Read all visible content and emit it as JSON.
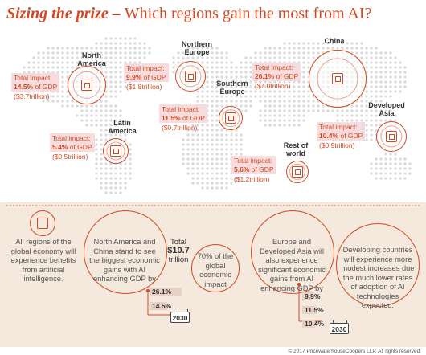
{
  "title": {
    "bold": "Sizing the prize",
    "dash": " – ",
    "rest": "Which regions gain the most from AI?"
  },
  "total_impact_label": "Total impact:",
  "regions": [
    {
      "name": "North America",
      "pct": "14.5%",
      "suffix": " of GDP",
      "amount": "($3.7trillion)"
    },
    {
      "name": "Northern Europe",
      "pct": "9.9%",
      "suffix": " of GDP",
      "amount": "($1.8trillion)"
    },
    {
      "name": "Southern Europe",
      "pct": "11.5%",
      "suffix": " of GDP",
      "amount": "($0.7trillion)"
    },
    {
      "name": "China",
      "pct": "26.1%",
      "suffix": " of GDP",
      "amount": "($7.0trillion)"
    },
    {
      "name": "Latin America",
      "pct": "5.4%",
      "suffix": " of GDP",
      "amount": "($0.5trillion)"
    },
    {
      "name": "Developed Asia",
      "pct": "10.4%",
      "suffix": " of GDP",
      "amount": "($0.9trillion)"
    },
    {
      "name": "Rest of world",
      "pct": "5.6%",
      "suffix": " of GDP",
      "amount": "($1.2trillion)"
    }
  ],
  "summary": {
    "all_regions": "All regions of the global economy will experience benefits from artificial intelligence.",
    "na_china": "North America and China stand to see the biggest economic gains with AI enhancing GDP by",
    "total_prefix": "Total",
    "total_value": "$10.7",
    "total_suffix": "trillion",
    "share": "70% of the global economic impact",
    "europe_asia": "Europe and Developed Asia will also experience significant economic gains from AI enhancing GDP by",
    "developing": "Developing countries will experience more modest increases due the much lower rates of adoption of AI technologies expected."
  },
  "bars_left": [
    {
      "label": "26.1%",
      "value": 26.1
    },
    {
      "label": "14.5%",
      "value": 14.5
    }
  ],
  "bars_right": [
    {
      "label": "9.9%",
      "value": 9.9
    },
    {
      "label": "11.5%",
      "value": 11.5
    },
    {
      "label": "10.4%",
      "value": 10.4
    }
  ],
  "year": "2030",
  "copyright": "© 2017 PricewaterhouseCoopers LLP. All rights reserved.",
  "colors": {
    "accent": "#d24a23",
    "label_bg": "#f6dcdc",
    "panel_bg": "#f5e8dd",
    "bar": "#e9cfc4"
  }
}
